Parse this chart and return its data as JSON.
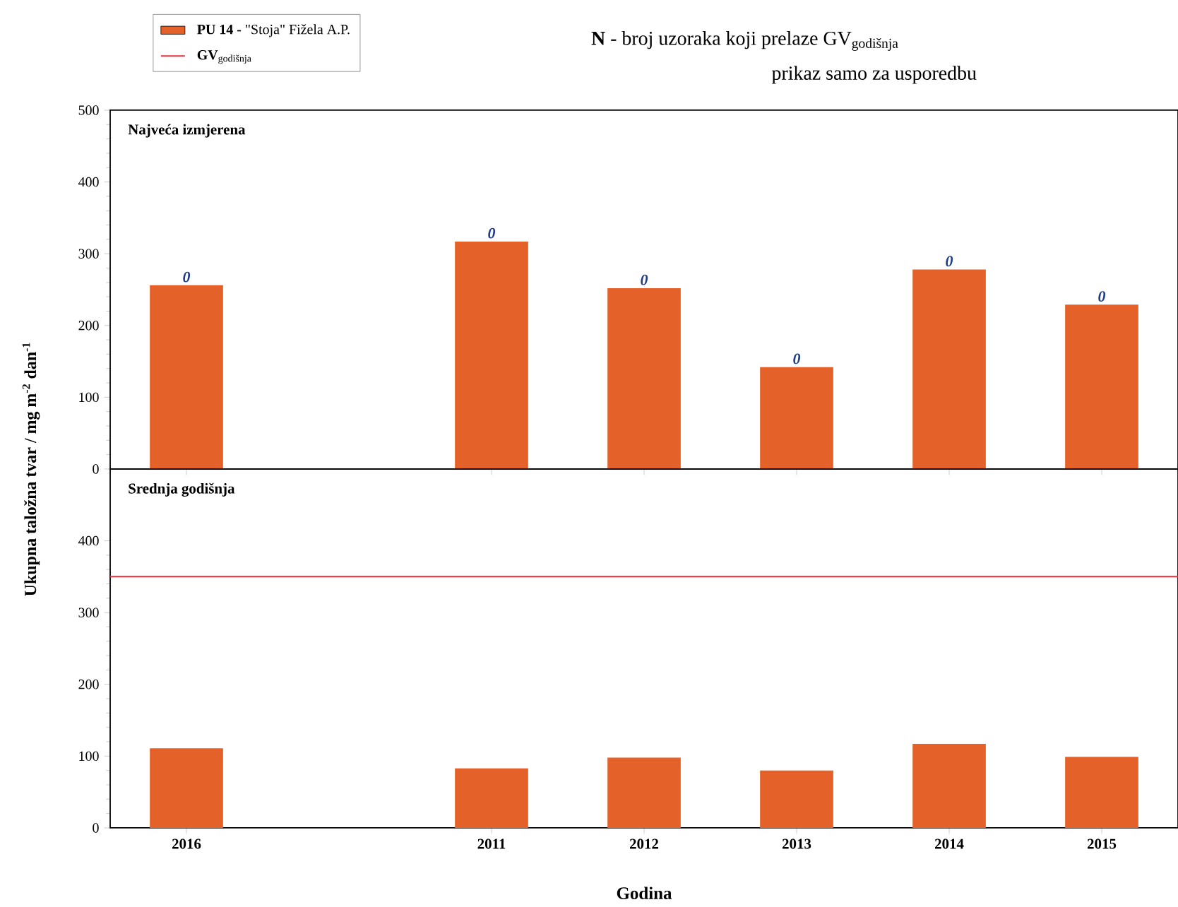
{
  "chart_data": [
    {
      "type": "bar",
      "title": "Najveća izmjerena",
      "ylabel": "Ukupna taložna tvar / mg m$^{-2}$ dan$^{-1}$",
      "categories": [
        "2016",
        null,
        "2011",
        "2012",
        "2013",
        "2014",
        "2015"
      ],
      "series": [
        {
          "name": "**PU 14 -** \"Stoja\" Fižela A.P.",
          "color": "#e4622a",
          "values": [
            256,
            null,
            317,
            252,
            142,
            278,
            229
          ]
        }
      ],
      "ylim": [
        0,
        500
      ],
      "yticks": [
        0,
        100,
        200,
        300,
        400,
        500
      ],
      "tick_labels": "y",
      "legend": "top",
      "annotations": [
        "**N** - broj uzoraka koji prelaze GV$_{godišnja}$",
        "prikaz samo za usporedbu",
        {
          "text": "0",
          "x": "2016",
          "y": 256
        },
        {
          "text": "0",
          "x": "2011",
          "y": 317
        },
        {
          "text": "0",
          "x": "2012",
          "y": 252
        },
        {
          "text": "0",
          "x": "2013",
          "y": 142
        },
        {
          "text": "0",
          "x": "2014",
          "y": 278
        },
        {
          "text": "0",
          "x": "2015",
          "y": 229
        }
      ]
    },
    {
      "type": "bar",
      "title": "Srednja godišnja",
      "xlabel": "Godina",
      "categories": [
        "2016",
        null,
        "2011",
        "2012",
        "2013",
        "2014",
        "2015"
      ],
      "series": [
        {
          "color": "#e4622a",
          "values": [
            111,
            null,
            83,
            98,
            80,
            117,
            99
          ]
        }
      ],
      "ylim": [
        0,
        500
      ],
      "yticks": [
        0,
        100,
        200,
        300,
        400
      ],
      "ref_lines": [
        {
          "axis": "y",
          "value": 350,
          "label": "**GV**$_{godišnja}$",
          "color": "#e8303a"
        }
      ]
    }
  ]
}
